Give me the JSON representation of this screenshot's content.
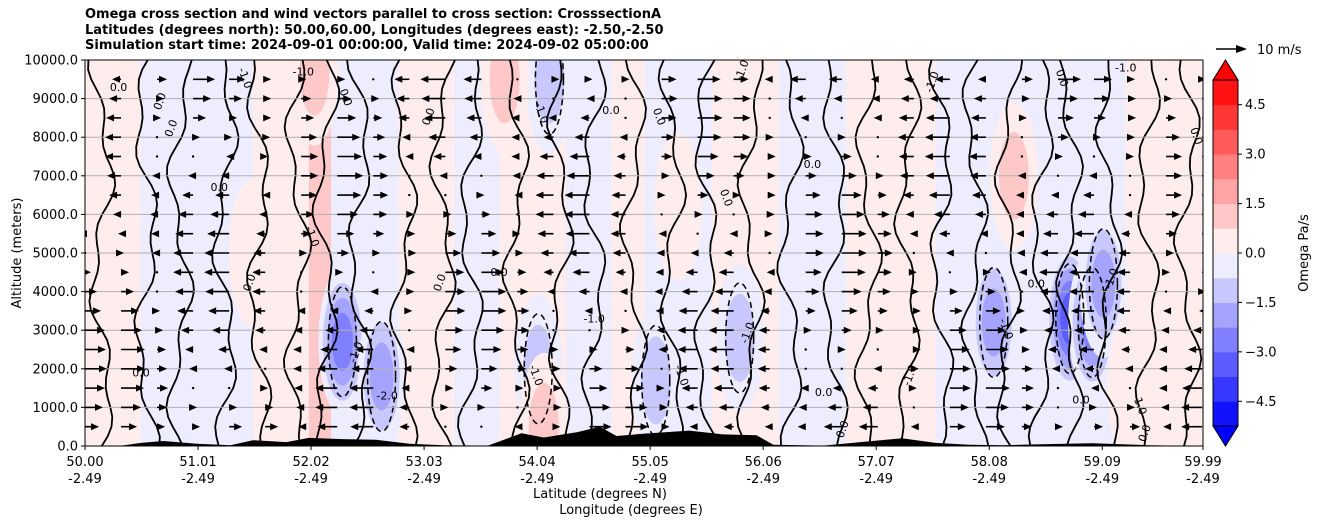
{
  "chart_data": {
    "type": "heatmap",
    "title_lines": [
      "Omega cross section and wind vectors parallel to cross section: CrosssectionA",
      "Latitudes (degrees north): 50.00,60.00, Longitudes (degrees east): -2.50,-2.50",
      "Simulation start time: 2024-09-01 00:00:00, Valid time: 2024-09-02 05:00:00"
    ],
    "ylabel": "Altitude (meters)",
    "xlabel_lines": [
      "Latitude (degrees N)",
      "Longitude (degrees E)"
    ],
    "y_ticks": [
      0,
      1000,
      2000,
      3000,
      4000,
      5000,
      6000,
      7000,
      8000,
      9000,
      10000
    ],
    "y_tick_labels": [
      "0.0",
      "1000.0",
      "2000.0",
      "3000.0",
      "4000.0",
      "5000.0",
      "6000.0",
      "7000.0",
      "8000.0",
      "9000.0",
      "10000.0"
    ],
    "ylim": [
      0,
      10000
    ],
    "xlim": [
      50.0,
      59.99
    ],
    "x_ticks": [
      {
        "lat": 50.0,
        "lat_label": "50.00",
        "lon_label": "-2.49"
      },
      {
        "lat": 51.01,
        "lat_label": "51.01",
        "lon_label": "-2.49"
      },
      {
        "lat": 52.02,
        "lat_label": "52.02",
        "lon_label": "-2.49"
      },
      {
        "lat": 53.03,
        "lat_label": "53.03",
        "lon_label": "-2.49"
      },
      {
        "lat": 54.04,
        "lat_label": "54.04",
        "lon_label": "-2.49"
      },
      {
        "lat": 55.05,
        "lat_label": "55.05",
        "lon_label": "-2.49"
      },
      {
        "lat": 56.06,
        "lat_label": "56.06",
        "lon_label": "-2.49"
      },
      {
        "lat": 57.07,
        "lat_label": "57.07",
        "lon_label": "-2.49"
      },
      {
        "lat": 58.08,
        "lat_label": "58.08",
        "lon_label": "-2.49"
      },
      {
        "lat": 59.09,
        "lat_label": "59.09",
        "lon_label": "-2.49"
      },
      {
        "lat": 59.99,
        "lat_label": "59.99",
        "lon_label": "-2.49"
      }
    ],
    "grid": "horizontal",
    "colorbar": {
      "label": "Omega Pa/s",
      "range": [
        -5.25,
        5.25
      ],
      "levels": [
        -5.25,
        -4.5,
        -3.75,
        -3.0,
        -2.25,
        -1.5,
        -0.75,
        0.0,
        0.75,
        1.5,
        2.25,
        3.0,
        3.75,
        4.5,
        5.25
      ],
      "tick_values": [
        -4.5,
        -3.0,
        -1.5,
        0.0,
        1.5,
        3.0,
        4.5
      ],
      "tick_labels": [
        "−4.5",
        "−3.0",
        "−1.5",
        "0.0",
        "1.5",
        "3.0",
        "4.5"
      ],
      "colormap": "bwr",
      "extend": "both"
    },
    "quiver_key": {
      "label": "10 m/s",
      "value": 10
    },
    "contour_labels": [
      "0.0",
      "-1.0",
      "1.0",
      "-2.0"
    ],
    "omega_anomalies": [
      {
        "lat": 52.3,
        "alt": 2700,
        "omega": -3.2
      },
      {
        "lat": 52.65,
        "alt": 1800,
        "omega": -2.5
      },
      {
        "lat": 54.05,
        "alt": 2000,
        "omega": -1.6
      },
      {
        "lat": 54.15,
        "alt": 9500,
        "omega": -1.2
      },
      {
        "lat": 55.1,
        "alt": 1700,
        "omega": -1.4
      },
      {
        "lat": 55.85,
        "alt": 2800,
        "omega": -1.5
      },
      {
        "lat": 58.12,
        "alt": 3200,
        "omega": -2.4
      },
      {
        "lat": 58.8,
        "alt": 3300,
        "omega": -3.8
      },
      {
        "lat": 59.0,
        "alt": 3200,
        "omega": -3.2
      },
      {
        "lat": 59.1,
        "alt": 4200,
        "omega": -2.6
      },
      {
        "lat": 54.1,
        "alt": 500,
        "omega": 1.7
      },
      {
        "lat": 53.75,
        "alt": 9500,
        "omega": 1.8
      },
      {
        "lat": 52.05,
        "alt": 9700,
        "omega": 1.6
      },
      {
        "lat": 55.3,
        "alt": 6200,
        "omega": 1.1
      },
      {
        "lat": 58.3,
        "alt": 7000,
        "omega": 1.2
      },
      {
        "lat": 59.35,
        "alt": 1500,
        "omega": 1.0
      },
      {
        "lat": 51.5,
        "alt": 5000,
        "omega": 0.6
      }
    ],
    "terrain": [
      [
        50.0,
        0
      ],
      [
        50.3,
        0
      ],
      [
        50.5,
        80
      ],
      [
        50.7,
        130
      ],
      [
        51.0,
        60
      ],
      [
        51.3,
        20
      ],
      [
        51.5,
        150
      ],
      [
        51.8,
        100
      ],
      [
        52.0,
        210
      ],
      [
        52.3,
        180
      ],
      [
        52.6,
        160
      ],
      [
        52.9,
        60
      ],
      [
        53.2,
        20
      ],
      [
        53.6,
        10
      ],
      [
        53.9,
        330
      ],
      [
        54.1,
        220
      ],
      [
        54.4,
        360
      ],
      [
        54.6,
        500
      ],
      [
        54.75,
        260
      ],
      [
        55.0,
        320
      ],
      [
        55.4,
        400
      ],
      [
        55.7,
        300
      ],
      [
        56.0,
        280
      ],
      [
        56.15,
        30
      ],
      [
        56.6,
        10
      ],
      [
        57.0,
        120
      ],
      [
        57.3,
        200
      ],
      [
        57.6,
        80
      ],
      [
        57.9,
        30
      ],
      [
        58.2,
        20
      ],
      [
        58.6,
        50
      ],
      [
        59.0,
        70
      ],
      [
        59.5,
        20
      ],
      [
        59.99,
        0
      ]
    ]
  }
}
